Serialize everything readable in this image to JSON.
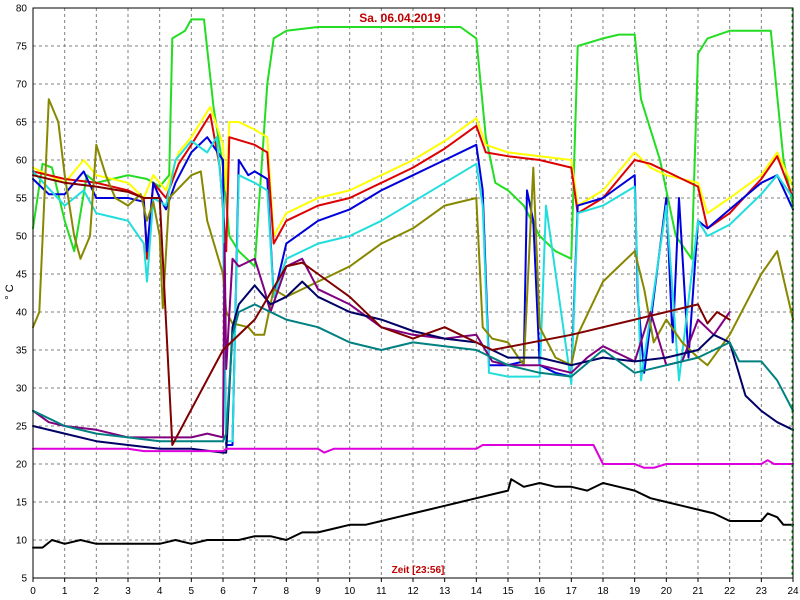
{
  "chart_data": {
    "type": "line",
    "title": "Sa. 06.04.2019",
    "xlabel": "Zeit [23:56]",
    "ylabel": "° C",
    "xlim": [
      0,
      24
    ],
    "ylim": [
      5,
      80
    ],
    "xticks": [
      "0",
      "1",
      "2",
      "3",
      "4",
      "5",
      "6",
      "7",
      "8",
      "9",
      "10",
      "11",
      "12",
      "13",
      "14",
      "15",
      "16",
      "17",
      "18",
      "19",
      "20",
      "21",
      "22",
      "23",
      "24"
    ],
    "yticks": [
      "5",
      "10",
      "15",
      "20",
      "25",
      "30",
      "35",
      "40",
      "45",
      "50",
      "55",
      "60",
      "65",
      "70",
      "75",
      "80"
    ],
    "grid": true,
    "current_time_marker": 24,
    "series": [
      {
        "color": "#22dd22",
        "x": [
          0,
          0.3,
          0.6,
          1,
          1.3,
          1.7,
          2,
          2.5,
          3,
          3.6,
          4,
          4.3,
          4.4,
          4.8,
          5,
          5.4,
          5.7,
          6,
          6.2,
          6.5,
          7,
          7.2,
          7.4,
          7.6,
          8,
          9,
          10,
          11,
          12,
          13,
          13.5,
          14,
          14.3,
          14.6,
          15,
          15.5,
          16,
          16.5,
          17,
          17.2,
          18,
          18.5,
          19,
          19.2,
          19.8,
          20.3,
          20.8,
          21,
          21.3,
          22,
          23,
          23.3,
          23.7,
          24
        ],
        "y": [
          51,
          59.5,
          59,
          52,
          48,
          58,
          57,
          57.5,
          58,
          57.5,
          56.5,
          58,
          76,
          77,
          78.5,
          78.5,
          67,
          59,
          50,
          48,
          46,
          58,
          70,
          76,
          77,
          77.5,
          77.5,
          77.5,
          77.5,
          77.5,
          77.5,
          76,
          63,
          57,
          56,
          54,
          50,
          48,
          47,
          75,
          76,
          76.5,
          76.5,
          68,
          60,
          50,
          47,
          74,
          76,
          77,
          77,
          77,
          60,
          54
        ]
      },
      {
        "color": "#ffff00",
        "x": [
          0,
          1,
          1.6,
          2,
          3,
          3.5,
          3.8,
          4.2,
          4.6,
          5,
          5.6,
          6,
          6.1,
          6.2,
          6.5,
          7,
          7.4,
          7.6,
          8,
          9,
          10,
          11,
          12,
          13,
          14,
          14.3,
          15,
          16,
          17,
          17.2,
          18,
          19,
          19.5,
          20,
          21,
          21.3,
          22,
          23,
          23.5,
          24
        ],
        "y": [
          59,
          57,
          60,
          58,
          57,
          55,
          58,
          56,
          61,
          63,
          67,
          62,
          56,
          65,
          65,
          64,
          63,
          50,
          53,
          55,
          56,
          58,
          60,
          62.5,
          65.5,
          62,
          61,
          60.5,
          60,
          54,
          56,
          61,
          59,
          58,
          57,
          53,
          55,
          58,
          61,
          56.5
        ]
      },
      {
        "color": "#dd0000",
        "x": [
          0,
          1,
          2,
          3,
          3.5,
          3.6,
          3.8,
          4.2,
          4.6,
          5,
          5.6,
          5.9,
          6.1,
          6.2,
          7,
          7.4,
          7.6,
          8,
          9,
          10,
          11,
          12,
          13,
          14,
          14.3,
          15,
          16,
          17,
          17.2,
          18,
          19,
          19.5,
          20,
          21,
          21.3,
          22,
          23,
          23.5,
          24
        ],
        "y": [
          58.5,
          57.5,
          57,
          56,
          55,
          47,
          57,
          55,
          59.5,
          62,
          66,
          59,
          48,
          63,
          62,
          61,
          49,
          52,
          54,
          55,
          57,
          59,
          61.5,
          64.5,
          61,
          60.5,
          60,
          59,
          53,
          55,
          60,
          59.5,
          58.5,
          56.5,
          51,
          53,
          57.5,
          60.5,
          55
        ]
      },
      {
        "color": "#0000dd",
        "x": [
          0,
          0.5,
          1,
          1.6,
          2,
          2.5,
          3,
          3.5,
          3.6,
          3.8,
          4,
          4.2,
          4.5,
          5,
          5.5,
          6,
          6.05,
          6.1,
          6.3,
          6.5,
          6.8,
          7,
          7.4,
          7.6,
          8,
          9,
          10,
          11,
          12,
          13,
          14,
          14.2,
          14.4,
          15,
          15.5,
          15.6,
          15.8,
          16,
          16.5,
          17,
          17.2,
          18,
          19,
          19.1,
          19.3,
          20,
          20.2,
          20.4,
          20.7,
          21,
          21.3,
          22,
          23,
          23.5,
          24
        ],
        "y": [
          57.5,
          55.5,
          55.5,
          58.5,
          55,
          55,
          55,
          54.5,
          48,
          57,
          55,
          53.5,
          57,
          61,
          63,
          60,
          36,
          22.5,
          22.5,
          60,
          58,
          58.5,
          57.5,
          42,
          49,
          52,
          53.5,
          56,
          58,
          60,
          62,
          56,
          33,
          33,
          33.5,
          56,
          52,
          33,
          32,
          31.5,
          54,
          55,
          58,
          42,
          32,
          55,
          36,
          55,
          34,
          52,
          51,
          53.5,
          57,
          58,
          53.5
        ]
      },
      {
        "color": "#22dddd",
        "x": [
          0,
          1,
          1.6,
          2,
          2.5,
          3,
          3.5,
          3.6,
          3.8,
          4.2,
          4.5,
          5,
          5.5,
          5.8,
          6,
          6.05,
          6.1,
          6.3,
          6.5,
          7,
          7.4,
          7.6,
          8,
          9,
          10,
          11,
          12,
          13,
          14,
          14.2,
          14.4,
          15,
          16,
          16.2,
          17,
          17.2,
          18,
          19,
          19.2,
          20,
          20.4,
          21,
          21.3,
          22,
          23,
          23.5,
          24
        ],
        "y": [
          58.5,
          54,
          56,
          53,
          52.5,
          52,
          49,
          44,
          55,
          54,
          60,
          62.5,
          61,
          63,
          54,
          34,
          23,
          23,
          58,
          57,
          56,
          42,
          47,
          49,
          50,
          52,
          54.5,
          57,
          59.5,
          54,
          32,
          31.5,
          31.5,
          54,
          30.5,
          53,
          54,
          56.5,
          31,
          54,
          31,
          52,
          50,
          51.5,
          55.5,
          58,
          55
        ]
      },
      {
        "color": "#888800",
        "x": [
          0,
          0.2,
          0.5,
          0.8,
          1,
          1.3,
          1.5,
          1.8,
          2,
          2.3,
          2.6,
          3,
          3.4,
          3.6,
          3.8,
          4,
          4.1,
          4.3,
          5,
          5.3,
          5.5,
          6,
          6.1,
          6.3,
          6.8,
          7,
          7.3,
          7.6,
          8,
          9,
          10,
          11,
          12,
          13,
          14,
          14.2,
          14.5,
          15,
          15.5,
          15.8,
          16,
          16.5,
          17,
          17.2,
          18,
          18.5,
          19,
          19.3,
          19.6,
          20,
          20.5,
          21,
          21.3,
          22,
          23,
          23.5,
          24
        ],
        "y": [
          38,
          40,
          68,
          65,
          58,
          50,
          47,
          50,
          62,
          58,
          55,
          54,
          55.5,
          52,
          54.5,
          50,
          40.5,
          55,
          58,
          58.5,
          52,
          45,
          40,
          38.5,
          38,
          37,
          37,
          43,
          42,
          44,
          46,
          49,
          51,
          54,
          55,
          38,
          36.5,
          36,
          33,
          59,
          38,
          34,
          33,
          37,
          44,
          46,
          48,
          43,
          36,
          39,
          36,
          34,
          33,
          37,
          45,
          48,
          39
        ]
      },
      {
        "color": "#800080",
        "x": [
          0,
          0.5,
          1,
          2,
          3,
          4,
          5,
          5.5,
          6,
          6.05,
          6.1,
          6.3,
          6.5,
          7,
          7.3,
          7.5,
          8,
          8.5,
          9,
          10,
          11,
          12,
          13,
          14,
          14.5,
          15,
          16,
          17,
          17.5,
          18,
          19,
          19.5,
          20,
          20.5,
          21,
          21.5,
          22
        ],
        "y": [
          27,
          25.5,
          25,
          24.5,
          23.5,
          23.5,
          23.5,
          24,
          23.5,
          49,
          32.5,
          47,
          46,
          47,
          43,
          40,
          46,
          47,
          43,
          41,
          38,
          37,
          36.5,
          37,
          33.5,
          33,
          33,
          32,
          34,
          35.5,
          33.5,
          40,
          33,
          33.5,
          39,
          37,
          40
        ]
      },
      {
        "color": "#000066",
        "x": [
          0,
          1,
          2,
          3,
          4,
          5,
          6,
          6.1,
          6.3,
          6.5,
          7,
          7.5,
          8,
          8.5,
          9,
          10,
          11,
          12,
          13,
          14,
          15,
          16,
          17,
          18,
          19,
          20,
          21,
          21.5,
          22,
          22.5,
          23,
          23.5,
          24
        ],
        "y": [
          25,
          24,
          23,
          22.5,
          22,
          22,
          21.5,
          21.5,
          38,
          41,
          43.5,
          41,
          42,
          44,
          42,
          40,
          39,
          37.5,
          36.5,
          36,
          34,
          34,
          33,
          34,
          33.5,
          34,
          35,
          37,
          36,
          29,
          27,
          25.5,
          24.5
        ]
      },
      {
        "color": "#008080",
        "x": [
          0,
          1,
          2,
          3,
          4,
          5,
          6,
          6.1,
          6.3,
          6.5,
          7,
          7.5,
          8,
          9,
          10,
          11,
          12,
          13,
          14,
          15,
          16,
          17,
          18,
          19,
          20,
          21,
          22,
          22.3,
          23,
          23.5,
          24
        ],
        "y": [
          27,
          25,
          24,
          23.5,
          23,
          23,
          23,
          24,
          37,
          40,
          41,
          40,
          39,
          38,
          36,
          35,
          36,
          35.5,
          35,
          33,
          32,
          31.5,
          35,
          32,
          33,
          34,
          36,
          33.5,
          33.5,
          31,
          27
        ]
      },
      {
        "color": "#800000",
        "x": [
          0,
          1,
          2,
          3,
          3.5,
          4,
          4.4,
          6,
          7,
          8,
          8.5,
          9,
          10,
          11,
          12,
          13,
          14,
          14.5,
          17,
          19,
          21,
          21.3,
          21.6,
          22
        ],
        "y": [
          58,
          57,
          56.5,
          55.8,
          55,
          55,
          22.5,
          35,
          39,
          46,
          46.5,
          45,
          42,
          38,
          36.5,
          38,
          36,
          35,
          37,
          39,
          41,
          38.5,
          40,
          39
        ]
      },
      {
        "color": "#dd00dd",
        "x": [
          0,
          1,
          2,
          3,
          3.5,
          4,
          5,
          6,
          6.1,
          7,
          8,
          9,
          9.2,
          9.5,
          10,
          11,
          12,
          13,
          14,
          14.2,
          15,
          16,
          17,
          17.7,
          18,
          19,
          19.3,
          19.6,
          20,
          21,
          22,
          23,
          23.2,
          23.4,
          24
        ],
        "y": [
          22,
          22,
          22,
          22,
          21.7,
          21.7,
          21.7,
          21.7,
          22,
          22,
          22,
          22,
          21.5,
          22,
          22,
          22,
          22,
          22,
          22,
          22.5,
          22.5,
          22.5,
          22.5,
          22.5,
          20,
          20,
          19.5,
          19.5,
          20,
          20,
          20,
          20,
          20.5,
          20,
          20
        ]
      },
      {
        "color": "#000000",
        "x": [
          0,
          0.3,
          0.6,
          1,
          1.5,
          2,
          2.5,
          3,
          3.5,
          4,
          4.5,
          5,
          5.5,
          6,
          6.5,
          7,
          7.5,
          8,
          8.5,
          9,
          9.5,
          10,
          10.5,
          11,
          11.5,
          12,
          12.5,
          13,
          13.5,
          14,
          14.5,
          15,
          15.1,
          15.5,
          16,
          16.5,
          17,
          17.5,
          18,
          18.5,
          19,
          19.5,
          20,
          20.5,
          21,
          21.5,
          22,
          22.5,
          23,
          23.2,
          23.5,
          23.7,
          24
        ],
        "y": [
          9,
          9,
          10,
          9.5,
          10,
          9.5,
          9.5,
          9.5,
          9.5,
          9.5,
          10,
          9.5,
          10,
          10,
          10,
          10.5,
          10.5,
          10,
          11,
          11,
          11.5,
          12,
          12,
          12.5,
          13,
          13.5,
          14,
          14.5,
          15,
          15.5,
          16,
          16.5,
          18,
          17,
          17.5,
          17,
          17,
          16.5,
          17.5,
          17,
          16.5,
          15.5,
          15,
          14.5,
          14,
          13.5,
          12.5,
          12.5,
          12.5,
          13.5,
          13,
          12,
          12
        ]
      }
    ]
  }
}
